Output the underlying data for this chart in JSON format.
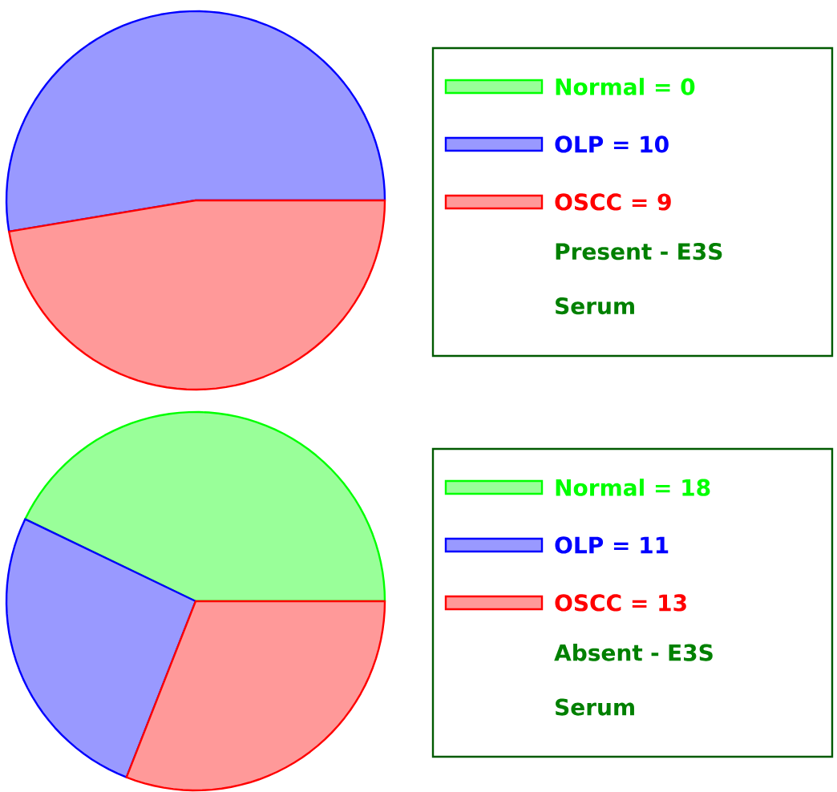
{
  "chart_data": [
    {
      "type": "pie",
      "categories": [
        "Normal = 0",
        "OLP = 10",
        "OSCC = 9"
      ],
      "values": [
        0,
        10,
        9
      ],
      "colors": [
        "#00ff00",
        "#0000ff",
        "#ff0000"
      ],
      "legend": "right",
      "legend_title": "Present - E3S Serum"
    },
    {
      "type": "pie",
      "categories": [
        "Normal = 18",
        "OLP = 11",
        "OSCC = 13"
      ],
      "values": [
        18,
        11,
        13
      ],
      "colors": [
        "#00ff00",
        "#0000ff",
        "#ff0000"
      ],
      "legend": "right",
      "legend_title": "Absent - E3S Serum"
    }
  ]
}
